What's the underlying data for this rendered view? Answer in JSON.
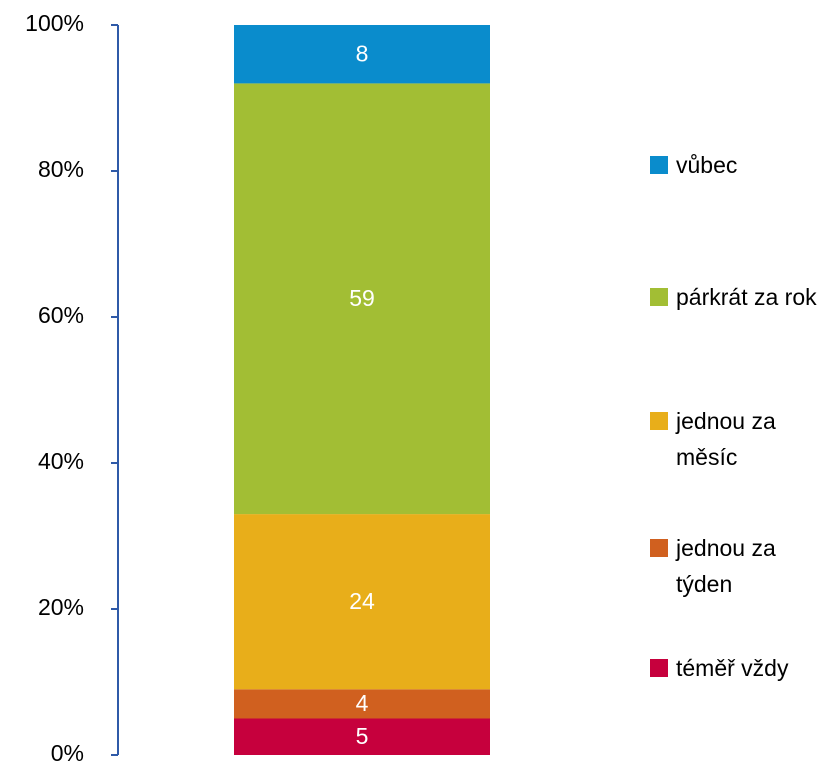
{
  "chart_data": {
    "type": "stacked_bar",
    "categories": [
      null
    ],
    "series": [
      {
        "name": "téměř vždy",
        "color": "#c6003d",
        "values": [
          5
        ]
      },
      {
        "name": "jednou za týden",
        "color": "#d0601f",
        "values": [
          4
        ]
      },
      {
        "name": "jednou za měsíc",
        "color": "#e8ae1a",
        "values": [
          24
        ]
      },
      {
        "name": "párkrát za rok",
        "color": "#a2be34",
        "values": [
          59
        ]
      },
      {
        "name": "vůbec",
        "color": "#0a8ccc",
        "values": [
          8
        ]
      }
    ],
    "ylim": [
      0,
      100
    ],
    "yticks": [
      {
        "value": 0,
        "label": "0%"
      },
      {
        "value": 20,
        "label": "20%"
      },
      {
        "value": 40,
        "label": "40%"
      },
      {
        "value": 60,
        "label": "60%"
      },
      {
        "value": 80,
        "label": "80%"
      },
      {
        "value": 100,
        "label": "100%"
      }
    ],
    "axis_color": "#2f5aa8",
    "legend": "right"
  }
}
